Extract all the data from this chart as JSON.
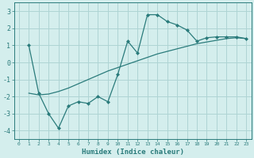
{
  "line1_x": [
    1,
    2,
    3,
    4,
    5,
    6,
    7,
    8,
    9,
    10,
    11,
    12,
    13,
    14,
    15,
    16,
    17,
    18,
    19,
    20,
    21,
    22,
    23
  ],
  "line1_y": [
    1.0,
    -1.8,
    -3.0,
    -3.85,
    -2.55,
    -2.3,
    -2.4,
    -2.0,
    -2.3,
    -0.7,
    1.25,
    0.55,
    2.8,
    2.8,
    2.4,
    2.2,
    1.9,
    1.25,
    1.45,
    1.5,
    1.5,
    1.5,
    1.4
  ],
  "line2_x": [
    1,
    2,
    3,
    4,
    5,
    6,
    7,
    8,
    9,
    10,
    11,
    12,
    13,
    14,
    15,
    16,
    17,
    18,
    19,
    20,
    21,
    22,
    23
  ],
  "line2_y": [
    -1.8,
    -1.9,
    -1.85,
    -1.7,
    -1.5,
    -1.25,
    -1.0,
    -0.75,
    -0.5,
    -0.3,
    -0.1,
    0.1,
    0.3,
    0.5,
    0.65,
    0.8,
    0.95,
    1.1,
    1.2,
    1.3,
    1.4,
    1.45,
    1.4
  ],
  "color": "#2a7b7b",
  "bg_color": "#d4eeed",
  "grid_color": "#aed4d4",
  "xlabel": "Humidex (Indice chaleur)",
  "ylim": [
    -4.5,
    3.5
  ],
  "xlim": [
    -0.5,
    23.5
  ],
  "yticks": [
    -4,
    -3,
    -2,
    -1,
    0,
    1,
    2,
    3
  ],
  "xticks": [
    0,
    1,
    2,
    3,
    4,
    5,
    6,
    7,
    8,
    9,
    10,
    11,
    12,
    13,
    14,
    15,
    16,
    17,
    18,
    19,
    20,
    21,
    22,
    23
  ],
  "xtick_labels": [
    "0",
    "1",
    "2",
    "3",
    "4",
    "5",
    "6",
    "7",
    "8",
    "9",
    "10",
    "11",
    "12",
    "13",
    "14",
    "15",
    "16",
    "17",
    "18",
    "19",
    "20",
    "21",
    "22",
    "23"
  ]
}
